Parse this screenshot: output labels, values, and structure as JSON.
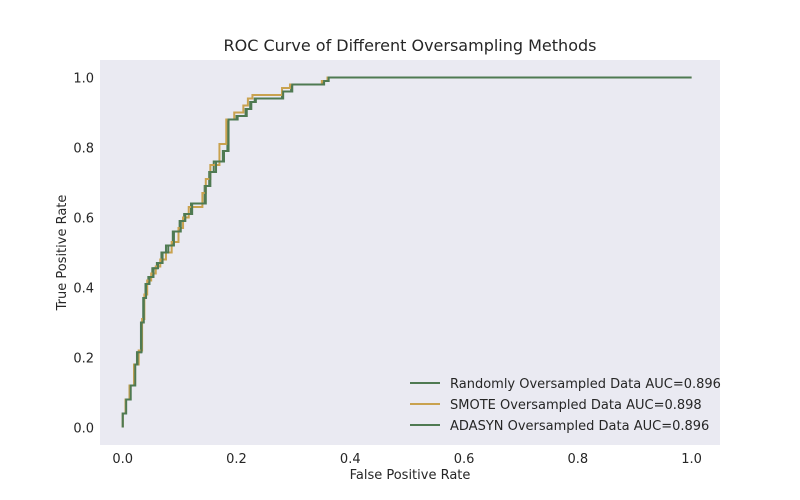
{
  "chart_data": {
    "type": "line",
    "title": "ROC Curve of Different Oversampling Methods",
    "xlabel": "False Positive Rate",
    "ylabel": "True Positive Rate",
    "xlim": [
      -0.04,
      1.05
    ],
    "ylim": [
      -0.05,
      1.05
    ],
    "xticks": [
      "0.0",
      "0.2",
      "0.4",
      "0.6",
      "0.8",
      "1.0"
    ],
    "yticks": [
      "0.0",
      "0.2",
      "0.4",
      "0.6",
      "0.8",
      "1.0"
    ],
    "grid": false,
    "legend_position": "lower-right",
    "background_color": "#eaeaf2",
    "series": [
      {
        "name": "Randomly Oversampled Data AUC=0.896",
        "color": "#4f7a52",
        "x": [
          0.0,
          0.0,
          0.005,
          0.005,
          0.012,
          0.012,
          0.02,
          0.02,
          0.025,
          0.025,
          0.032,
          0.032,
          0.036,
          0.036,
          0.04,
          0.04,
          0.045,
          0.045,
          0.052,
          0.052,
          0.06,
          0.06,
          0.068,
          0.068,
          0.076,
          0.076,
          0.088,
          0.088,
          0.1,
          0.1,
          0.108,
          0.108,
          0.12,
          0.12,
          0.144,
          0.144,
          0.152,
          0.152,
          0.16,
          0.16,
          0.176,
          0.176,
          0.184,
          0.184,
          0.2,
          0.2,
          0.216,
          0.216,
          0.224,
          0.224,
          0.232,
          0.232,
          0.28,
          0.28,
          0.296,
          0.296,
          0.352,
          0.352,
          0.36,
          0.36,
          1.0
        ],
        "y": [
          0.0,
          0.04,
          0.04,
          0.08,
          0.08,
          0.12,
          0.12,
          0.18,
          0.18,
          0.215,
          0.215,
          0.3,
          0.3,
          0.37,
          0.37,
          0.41,
          0.41,
          0.43,
          0.43,
          0.455,
          0.455,
          0.47,
          0.47,
          0.5,
          0.5,
          0.52,
          0.52,
          0.56,
          0.56,
          0.59,
          0.59,
          0.61,
          0.61,
          0.64,
          0.64,
          0.69,
          0.69,
          0.73,
          0.73,
          0.76,
          0.76,
          0.79,
          0.79,
          0.88,
          0.88,
          0.89,
          0.89,
          0.91,
          0.91,
          0.93,
          0.93,
          0.94,
          0.94,
          0.96,
          0.96,
          0.98,
          0.98,
          0.99,
          0.99,
          1.0,
          1.0
        ]
      },
      {
        "name": "SMOTE Oversampled Data AUC=0.898",
        "color": "#c9a24f",
        "x": [
          0.0,
          0.0,
          0.005,
          0.005,
          0.012,
          0.012,
          0.02,
          0.02,
          0.028,
          0.028,
          0.034,
          0.034,
          0.038,
          0.038,
          0.043,
          0.043,
          0.05,
          0.05,
          0.058,
          0.058,
          0.066,
          0.066,
          0.076,
          0.076,
          0.086,
          0.086,
          0.098,
          0.098,
          0.106,
          0.106,
          0.116,
          0.116,
          0.14,
          0.14,
          0.146,
          0.146,
          0.154,
          0.154,
          0.17,
          0.17,
          0.182,
          0.182,
          0.196,
          0.196,
          0.212,
          0.212,
          0.22,
          0.22,
          0.228,
          0.228,
          0.28,
          0.28,
          0.294,
          0.294,
          0.35,
          0.35,
          0.36,
          0.36,
          1.0
        ],
        "y": [
          0.0,
          0.04,
          0.04,
          0.08,
          0.08,
          0.12,
          0.12,
          0.18,
          0.18,
          0.22,
          0.22,
          0.31,
          0.31,
          0.38,
          0.38,
          0.42,
          0.42,
          0.44,
          0.44,
          0.46,
          0.46,
          0.48,
          0.48,
          0.5,
          0.5,
          0.53,
          0.53,
          0.57,
          0.57,
          0.6,
          0.6,
          0.63,
          0.63,
          0.67,
          0.67,
          0.71,
          0.71,
          0.75,
          0.75,
          0.81,
          0.81,
          0.88,
          0.88,
          0.9,
          0.9,
          0.92,
          0.92,
          0.94,
          0.94,
          0.95,
          0.95,
          0.97,
          0.97,
          0.98,
          0.98,
          0.99,
          0.99,
          1.0,
          1.0
        ]
      },
      {
        "name": "ADASYN Oversampled Data AUC=0.896",
        "color": "#4f7a52",
        "x": [
          0.0,
          0.0,
          0.006,
          0.006,
          0.014,
          0.014,
          0.022,
          0.022,
          0.026,
          0.026,
          0.033,
          0.033,
          0.037,
          0.037,
          0.041,
          0.041,
          0.047,
          0.047,
          0.054,
          0.054,
          0.062,
          0.062,
          0.07,
          0.07,
          0.08,
          0.08,
          0.09,
          0.09,
          0.102,
          0.102,
          0.11,
          0.11,
          0.122,
          0.122,
          0.146,
          0.146,
          0.154,
          0.154,
          0.164,
          0.164,
          0.178,
          0.178,
          0.186,
          0.186,
          0.202,
          0.202,
          0.218,
          0.218,
          0.226,
          0.226,
          0.234,
          0.234,
          0.282,
          0.282,
          0.298,
          0.298,
          0.354,
          0.354,
          0.362,
          0.362,
          1.0
        ],
        "y": [
          0.0,
          0.04,
          0.04,
          0.08,
          0.08,
          0.12,
          0.12,
          0.18,
          0.18,
          0.215,
          0.215,
          0.3,
          0.3,
          0.37,
          0.37,
          0.41,
          0.41,
          0.43,
          0.43,
          0.455,
          0.455,
          0.47,
          0.47,
          0.5,
          0.5,
          0.52,
          0.52,
          0.56,
          0.56,
          0.59,
          0.59,
          0.61,
          0.61,
          0.64,
          0.64,
          0.69,
          0.69,
          0.73,
          0.73,
          0.76,
          0.76,
          0.79,
          0.79,
          0.88,
          0.88,
          0.89,
          0.89,
          0.91,
          0.91,
          0.93,
          0.93,
          0.94,
          0.94,
          0.96,
          0.96,
          0.98,
          0.98,
          0.99,
          0.99,
          1.0,
          1.0
        ]
      }
    ]
  }
}
